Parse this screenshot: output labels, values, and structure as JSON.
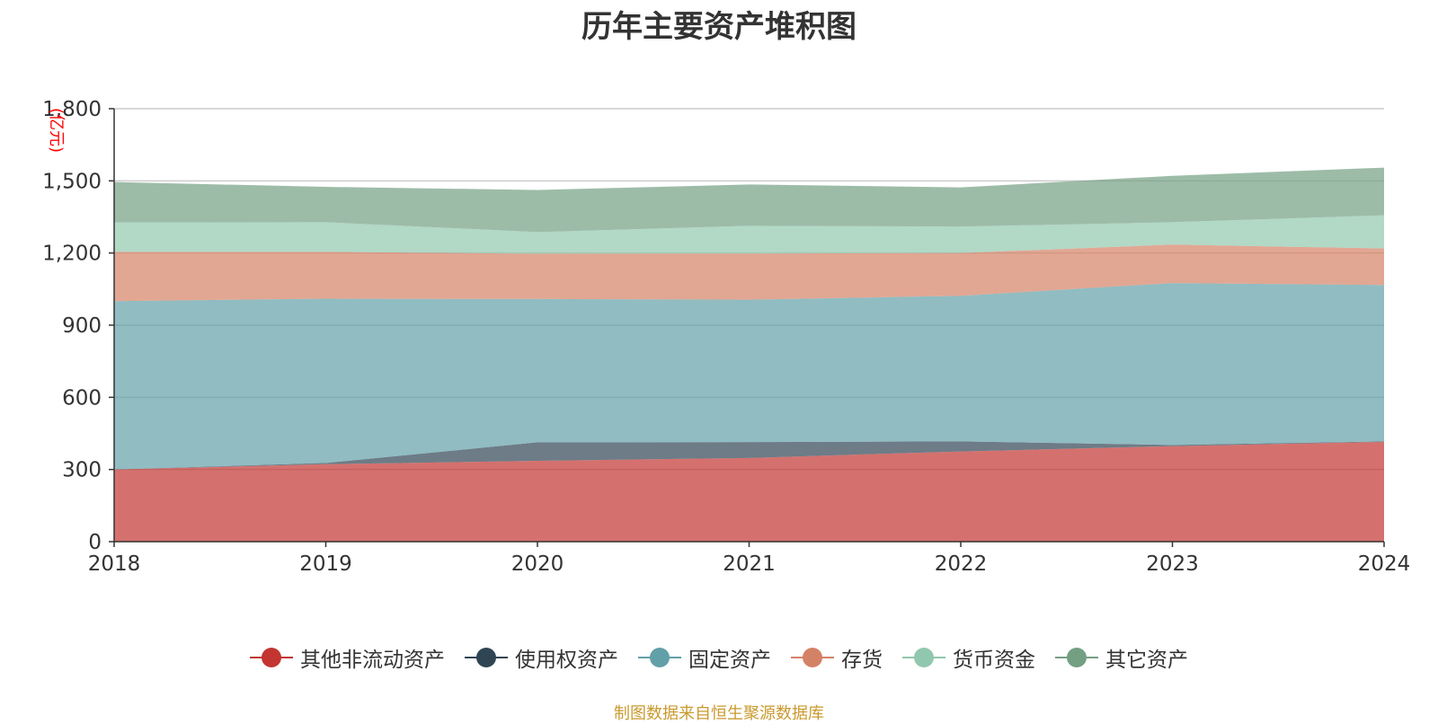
{
  "chart_data": {
    "type": "area",
    "stacked": true,
    "title": "历年主要资产堆积图",
    "ylabel": "(亿元)",
    "xlabel": "",
    "ylim": [
      0,
      1800
    ],
    "yticks": [
      0,
      300,
      600,
      900,
      1200,
      1500,
      1800
    ],
    "ytick_labels": [
      "0",
      "300",
      "600",
      "900",
      "1,200",
      "1,500",
      "1,800"
    ],
    "categories": [
      "2018",
      "2019",
      "2020",
      "2021",
      "2022",
      "2023",
      "2024"
    ],
    "grid": true,
    "legend_position": "bottom",
    "series": [
      {
        "name": "其他非流动资产",
        "color": "#c23531",
        "values": [
          300,
          322,
          336,
          348,
          375,
          397,
          415
        ]
      },
      {
        "name": "使用权资产",
        "color": "#2f4554",
        "values": [
          0,
          5,
          77,
          66,
          42,
          5,
          2
        ]
      },
      {
        "name": "固定资产",
        "color": "#61a0a8",
        "values": [
          700,
          683,
          596,
          592,
          605,
          673,
          650
        ]
      },
      {
        "name": "存货",
        "color": "#d48265",
        "values": [
          205,
          195,
          188,
          192,
          178,
          160,
          152
        ]
      },
      {
        "name": "货币资金",
        "color": "#91c7ae",
        "values": [
          122,
          123,
          90,
          115,
          110,
          93,
          138
        ]
      },
      {
        "name": "其它资产",
        "color": "#749f83",
        "values": [
          168,
          147,
          175,
          172,
          163,
          193,
          198
        ]
      }
    ]
  },
  "footer": {
    "source": "制图数据来自恒生聚源数据库"
  }
}
